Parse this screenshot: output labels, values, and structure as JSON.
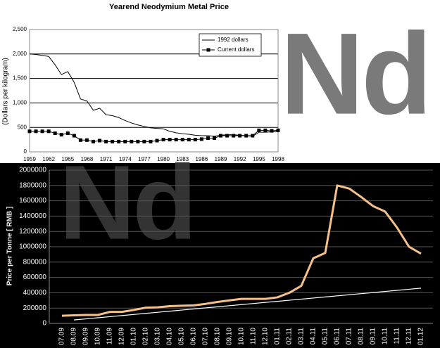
{
  "chart_data": [
    {
      "type": "line",
      "title": "Yearend Neodymium Metal Price",
      "y_label": "(Dollars per kilogram)",
      "annotation": "Nd",
      "categories": [
        "1959",
        null,
        null,
        "1962",
        null,
        null,
        "1965",
        null,
        null,
        "1968",
        null,
        null,
        "1971",
        null,
        null,
        "1974",
        null,
        null,
        "1977",
        null,
        null,
        "1980",
        null,
        null,
        "1983",
        null,
        null,
        "1986",
        null,
        null,
        "1989",
        null,
        null,
        "1992",
        null,
        null,
        "1995",
        null,
        null,
        "1998"
      ],
      "series": [
        {
          "name": "1992 dollars",
          "color": "#000000",
          "marker": "none",
          "values": [
            2000,
            1990,
            1970,
            1950,
            1780,
            1580,
            1640,
            1420,
            1080,
            1040,
            850,
            890,
            760,
            740,
            700,
            640,
            590,
            550,
            520,
            490,
            480,
            470,
            420,
            390,
            370,
            360,
            340,
            330,
            330,
            320,
            340,
            350,
            350,
            340,
            330,
            320,
            400,
            400,
            410,
            420
          ]
        },
        {
          "name": "Current dollars",
          "color": "#000000",
          "marker": "square",
          "values": [
            420,
            420,
            420,
            420,
            380,
            350,
            380,
            330,
            240,
            240,
            210,
            230,
            210,
            210,
            210,
            210,
            210,
            210,
            210,
            210,
            230,
            250,
            250,
            250,
            250,
            250,
            250,
            260,
            280,
            280,
            330,
            330,
            330,
            330,
            330,
            330,
            440,
            440,
            430,
            440
          ]
        }
      ],
      "ylim": [
        0,
        2500
      ],
      "yticks": [
        0,
        500,
        {
          "value": 1000,
          "label": "1,000"
        },
        {
          "value": 1500,
          "label": "1,500"
        },
        {
          "value": 2000,
          "label": "2,000"
        },
        {
          "value": 2500,
          "label": "2,500"
        }
      ],
      "grid": true,
      "legend": "upper right"
    },
    {
      "type": "line",
      "y_label": "Price per Tonne [ RMB ]",
      "annotation": "Nd",
      "categories": [
        "07.09",
        "08.09",
        "09.09",
        "10.09",
        "11.09",
        "12.09",
        "01.10",
        "02.10",
        "03.10",
        "04.10",
        "05.10",
        "06.10",
        "07.10",
        "08.10",
        "09.10",
        "10.10",
        "11.10",
        "12.10",
        "01.11",
        "02.11",
        "03.11",
        "04.11",
        "05.11",
        "06.11",
        "07.11",
        "08.11",
        "09.11",
        "10.11",
        "11.11",
        "12.11",
        "01.12"
      ],
      "series": [
        {
          "color": "#f5c08a",
          "values": [
            100000,
            105000,
            110000,
            110000,
            150000,
            150000,
            175000,
            205000,
            210000,
            225000,
            230000,
            235000,
            255000,
            280000,
            300000,
            320000,
            320000,
            320000,
            340000,
            400000,
            490000,
            850000,
            920000,
            1800000,
            1760000,
            1650000,
            1530000,
            1460000,
            1250000,
            1000000,
            910000
          ]
        },
        {
          "color": "#ffffff",
          "values": [
            null,
            45000,
            59300,
            73600,
            87900,
            102200,
            116500,
            130800,
            145100,
            159400,
            173700,
            188000,
            202300,
            216600,
            230900,
            245200,
            259500,
            273800,
            288100,
            302400,
            316700,
            331000,
            345300,
            359600,
            373900,
            388200,
            402500,
            416800,
            431100,
            445400,
            459700
          ]
        }
      ],
      "ylim": [
        0,
        2000000
      ],
      "yticks": [
        0,
        200000,
        400000,
        600000,
        800000,
        1000000,
        1200000,
        1400000,
        1600000,
        1800000,
        2000000
      ],
      "grid": true
    }
  ]
}
